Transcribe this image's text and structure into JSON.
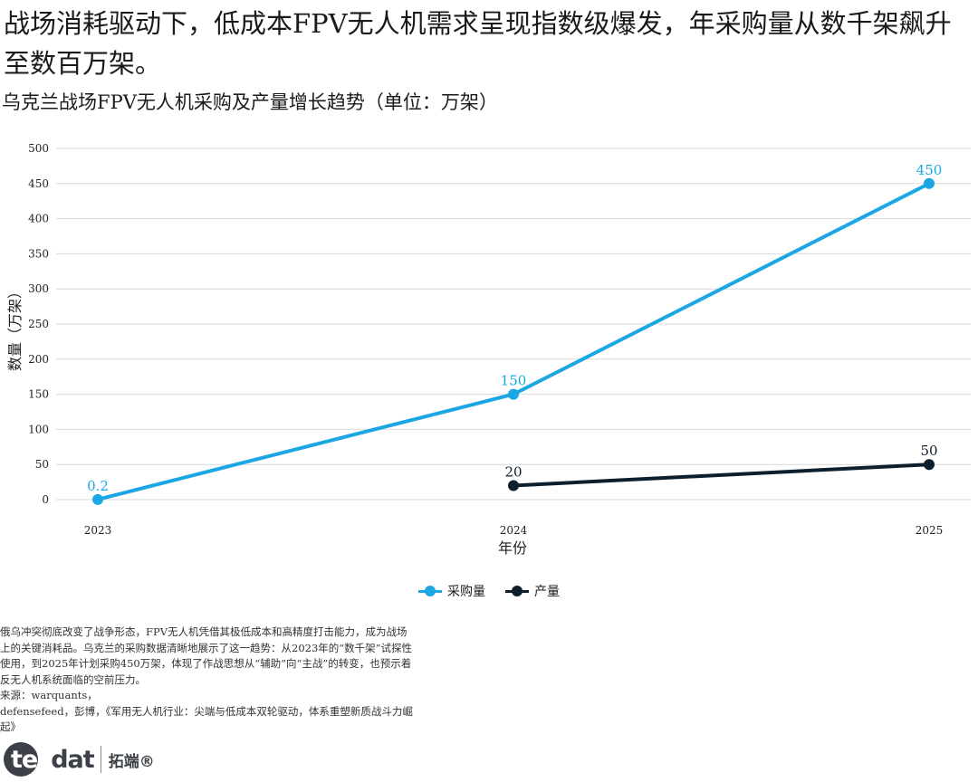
{
  "headline": "战场消耗驱动下，低成本FPV无人机需求呈现指数级爆发，年采购量从数千架飙升至数百万架。",
  "colors": {
    "procurement": "#1aa7e4",
    "production": "#0d1e2c",
    "grid": "#d9d9d9"
  },
  "chart_data": {
    "type": "line",
    "title": "乌克兰战场FPV无人机采购及产量增长趋势（单位：万架）",
    "xlabel": "年份",
    "ylabel": "数量（万架）",
    "ylim": [
      0,
      500
    ],
    "yticks": [
      0,
      50,
      100,
      150,
      200,
      250,
      300,
      350,
      400,
      450,
      500
    ],
    "categories": [
      "2023",
      "2024",
      "2025"
    ],
    "grid": true,
    "legend_position": "bottom-center",
    "series": [
      {
        "name": "采购量",
        "color": "#1aa7e4",
        "values": [
          0.2,
          150,
          450
        ],
        "labels": [
          "0.2",
          "150",
          "450"
        ]
      },
      {
        "name": "产量",
        "color": "#0d1e2c",
        "values": [
          null,
          20,
          50
        ],
        "labels": [
          null,
          "20",
          "50"
        ]
      }
    ]
  },
  "notes": {
    "body": "俄乌冲突彻底改变了战争形态，FPV无人机凭借其极低成本和高精度打击能力，成为战场上的关键消耗品。乌克兰的采购数据清晰地展示了这一趋势：从2023年的“数千架”试探性使用，到2025年计划采购450万架，体现了作战思想从“辅助”向“主战”的转变，也预示着反无人机系统面临的空前压力。",
    "source_line1": "来源：warquants，",
    "source_line2": "defensefeed，彭博，《军用无人机行业：尖端与低成本双轮驱动，体系重塑新质战斗力崛起》"
  },
  "brand": {
    "logo_part1": "tec",
    "logo_part2": "dat",
    "name": "拓端®"
  }
}
